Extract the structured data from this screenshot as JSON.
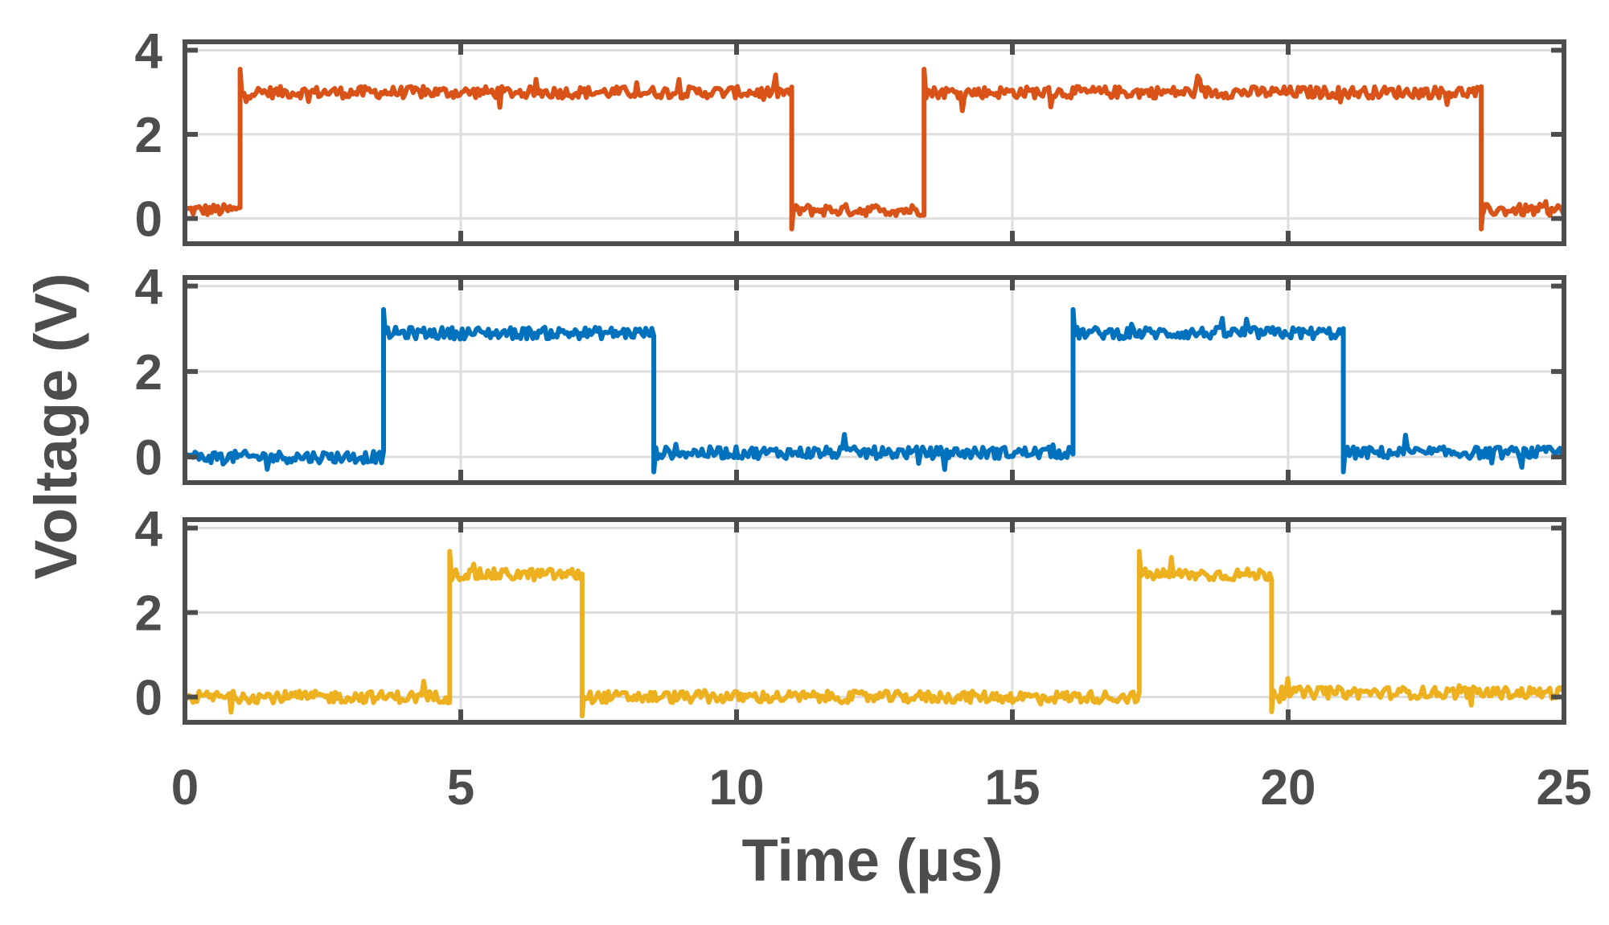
{
  "chart_data": {
    "type": "line",
    "layout": "3 stacked panels, shared x-axis",
    "xlabel": "Time (µs)",
    "ylabel": "Voltage (V)",
    "xlim": [
      0,
      25
    ],
    "xticks": [
      0,
      5,
      10,
      15,
      20,
      25
    ],
    "ylim": [
      -0.6,
      4.2
    ],
    "yticks": [
      0,
      2,
      4
    ],
    "grid": true,
    "colors": {
      "axis": "#4d4d4d",
      "grid": "#dedede",
      "series": [
        "#d95319",
        "#0072bd",
        "#edb120"
      ]
    },
    "panels": [
      {
        "low": 0.2,
        "high": 3.0,
        "points": [
          [
            0,
            0.2
          ],
          [
            1.0,
            0.2
          ],
          [
            1.0,
            3.0
          ],
          [
            11.0,
            3.0
          ],
          [
            11.0,
            0.2
          ],
          [
            13.4,
            0.2
          ],
          [
            13.4,
            3.0
          ],
          [
            23.5,
            3.0
          ],
          [
            23.5,
            0.2
          ],
          [
            25,
            0.2
          ]
        ]
      },
      {
        "low": 0.0,
        "high": 2.9,
        "points": [
          [
            0,
            0.0
          ],
          [
            3.6,
            0.0
          ],
          [
            3.6,
            2.9
          ],
          [
            8.5,
            2.9
          ],
          [
            8.5,
            0.1
          ],
          [
            16.1,
            0.1
          ],
          [
            16.1,
            2.9
          ],
          [
            21.0,
            2.9
          ],
          [
            21.0,
            0.1
          ],
          [
            25,
            0.1
          ]
        ]
      },
      {
        "low": 0.0,
        "high": 2.9,
        "points": [
          [
            0,
            0.0
          ],
          [
            4.8,
            0.0
          ],
          [
            4.8,
            2.9
          ],
          [
            7.2,
            2.9
          ],
          [
            7.2,
            0.0
          ],
          [
            17.3,
            0.0
          ],
          [
            17.3,
            2.9
          ],
          [
            19.7,
            2.9
          ],
          [
            19.7,
            0.1
          ],
          [
            25,
            0.1
          ]
        ]
      }
    ]
  }
}
